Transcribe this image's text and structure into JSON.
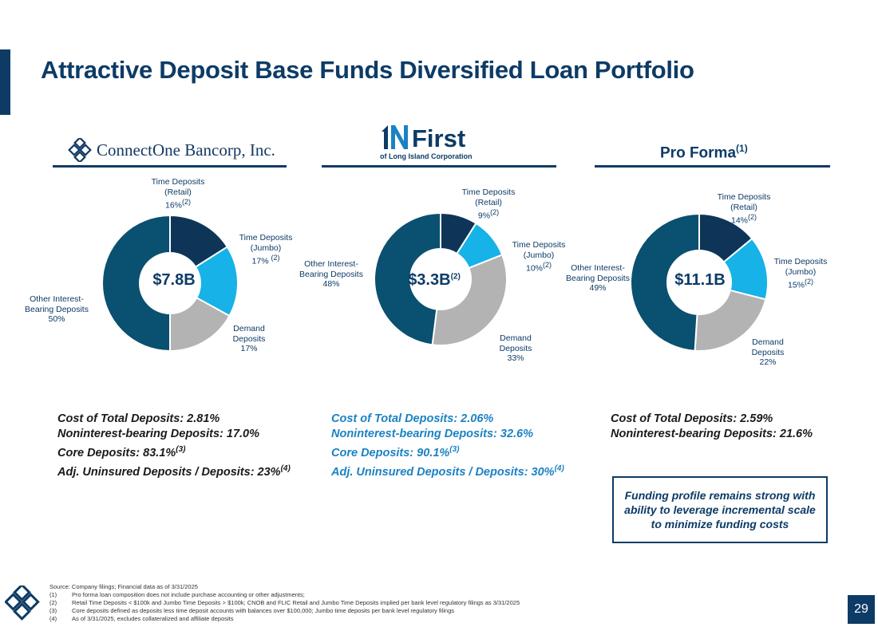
{
  "title": "Attractive Deposit Base Funds Diversified Loan Portfolio",
  "columns": [
    {
      "logo_text": "ConnectOne Bancorp, Inc."
    },
    {
      "logo_text": "First",
      "logo_subtext": "of Long Island Corporation"
    },
    {
      "heading": "Pro Forma",
      "heading_note": "(1)"
    }
  ],
  "colors": {
    "time_retail": "#0e3558",
    "time_jumbo": "#16b2e8",
    "demand": "#b3b3b3",
    "other": "#0a5070",
    "brand": "#0d3b66",
    "stats_blue": "#1a82c4"
  },
  "chart_data": [
    {
      "type": "pie",
      "name": "ConnectOne",
      "center_value": "$7.8B",
      "categories": [
        "Time Deposits (Retail)",
        "Time Deposits (Jumbo)",
        "Demand Deposits",
        "Other Interest-Bearing Deposits"
      ],
      "values": [
        16,
        17,
        17,
        50
      ],
      "labels": [
        {
          "l1": "Time Deposits",
          "l2": "(Retail)",
          "pct": "16%",
          "note": "(2)"
        },
        {
          "l1": "Time Deposits",
          "l2": "(Jumbo)",
          "pct": "17%",
          "note": "(2)"
        },
        {
          "l1": "Demand",
          "l2": "Deposits",
          "pct": "17%",
          "note": ""
        },
        {
          "l1": "Other Interest-",
          "l2": "Bearing Deposits",
          "pct": "50%",
          "note": ""
        }
      ]
    },
    {
      "type": "pie",
      "name": "First of Long Island",
      "center_value": "$3.3B",
      "center_note": "(2)",
      "categories": [
        "Time Deposits (Retail)",
        "Time Deposits (Jumbo)",
        "Demand Deposits",
        "Other Interest-Bearing Deposits"
      ],
      "values": [
        9,
        10,
        33,
        48
      ],
      "labels": [
        {
          "l1": "Time Deposits",
          "l2": "(Retail)",
          "pct": "9%",
          "note": "(2)"
        },
        {
          "l1": "Time Deposits",
          "l2": "(Jumbo)",
          "pct": "10%",
          "note": "(2)"
        },
        {
          "l1": "Demand",
          "l2": "Deposits",
          "pct": "33%",
          "note": ""
        },
        {
          "l1": "Other Interest-",
          "l2": "Bearing Deposits",
          "pct": "48%",
          "note": ""
        }
      ]
    },
    {
      "type": "pie",
      "name": "Pro Forma",
      "center_value": "$11.1B",
      "categories": [
        "Time Deposits (Retail)",
        "Time Deposits (Jumbo)",
        "Demand Deposits",
        "Other Interest-Bearing Deposits"
      ],
      "values": [
        14,
        15,
        22,
        49
      ],
      "labels": [
        {
          "l1": "Time Deposits",
          "l2": "(Retail)",
          "pct": "14%",
          "note": "(2)"
        },
        {
          "l1": "Time Deposits",
          "l2": "(Jumbo)",
          "pct": "15%",
          "note": "(2)"
        },
        {
          "l1": "Demand",
          "l2": "Deposits",
          "pct": "22%",
          "note": ""
        },
        {
          "l1": "Other Interest-",
          "l2": "Bearing Deposits",
          "pct": "49%",
          "note": ""
        }
      ]
    }
  ],
  "stats": [
    {
      "lines": [
        {
          "text": "Cost of Total Deposits: 2.81%",
          "note": ""
        },
        {
          "text": "Noninterest-bearing Deposits: 17.0%",
          "note": ""
        },
        {
          "text": "Core Deposits: 83.1%",
          "note": "(3)"
        },
        {
          "text": "Adj. Uninsured Deposits / Deposits: 23%",
          "note": "(4)"
        }
      ]
    },
    {
      "lines": [
        {
          "text": "Cost of Total Deposits: 2.06%",
          "note": ""
        },
        {
          "text": "Noninterest-bearing Deposits: 32.6%",
          "note": ""
        },
        {
          "text": "Core Deposits: 90.1%",
          "note": "(3)"
        },
        {
          "text": "Adj. Uninsured Deposits / Deposits: 30%",
          "note": "(4)"
        }
      ]
    },
    {
      "lines": [
        {
          "text": "Cost of Total Deposits: 2.59%",
          "note": ""
        },
        {
          "text": "Noninterest-bearing Deposits: 21.6%",
          "note": ""
        }
      ]
    }
  ],
  "note_box": "Funding profile remains strong with ability to leverage incremental scale to minimize funding costs",
  "footnotes": {
    "source": "Source: Company filings; Financial data as of 3/31/2025",
    "items": [
      {
        "num": "(1)",
        "text": "Pro forma loan composition does not include purchase accounting or other adjustments;"
      },
      {
        "num": "(2)",
        "text": "Retail Time Deposits < $100k and Jumbo Time Deposits > $100k; CNOB and FLIC Retail and Jumbo Time Deposits implied per bank level regulatory filings as 3/31/2025"
      },
      {
        "num": "(3)",
        "text": "Core deposits defined as deposits less time deposit accounts with balances over $100,000; Jumbo time deposits per bank level regulatory filings"
      },
      {
        "num": "(4)",
        "text": "As of 3/31/2025, excludes collateralized and affiliate deposits"
      }
    ]
  },
  "page_number": "29"
}
